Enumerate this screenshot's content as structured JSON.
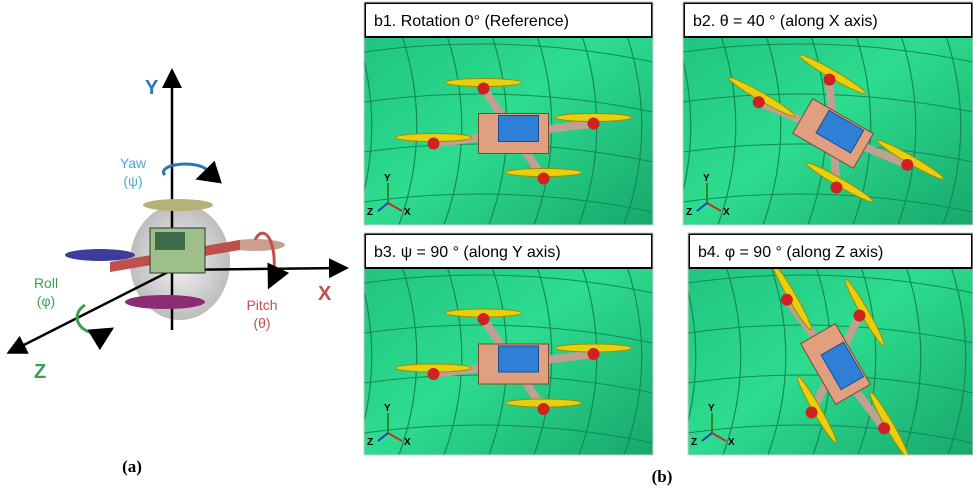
{
  "panel_a": {
    "axes": {
      "y": "Y",
      "x": "X",
      "z": "Z"
    },
    "rotations": [
      {
        "name": "Yaw",
        "symbol": "(ψ)"
      },
      {
        "name": "Roll",
        "symbol": "(φ)"
      },
      {
        "name": "Pitch",
        "symbol": "(θ)"
      }
    ],
    "caption": "(a)"
  },
  "panel_b": {
    "caption": "(b)",
    "views": [
      {
        "label": "b1. Rotation 0° (Reference)",
        "triad": {
          "y": "Y",
          "z": "Z",
          "x": "X"
        }
      },
      {
        "label": "b2. θ = 40 ° (along X axis)",
        "triad": {
          "y": "Y",
          "z": "Z",
          "x": "X"
        }
      },
      {
        "label": "b3. ψ = 90 ° (along Y axis)",
        "triad": {
          "y": "Y",
          "z": "Z",
          "x": "X"
        }
      },
      {
        "label": "b4. φ = 90 ° (along Z axis)",
        "triad": {
          "y": "Y",
          "z": "Z",
          "x": "X"
        }
      }
    ]
  }
}
